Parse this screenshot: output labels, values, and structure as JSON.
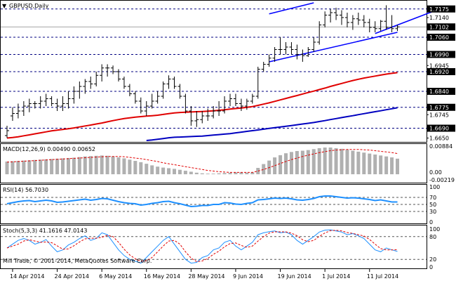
{
  "window": {
    "title": "GBPUSD,Daily"
  },
  "panes": {
    "main": {
      "header": "GBPUSD,Daily",
      "ylim": [
        1.664,
        1.72
      ]
    },
    "macd": {
      "header": "MACD(12,26,9) 0.00490 0.00652",
      "ylim": [
        -0.00219,
        0.00884
      ]
    },
    "rsi": {
      "header": "RSI(14) 56.7030",
      "ylim": [
        0,
        100
      ]
    },
    "stoch": {
      "header": "Stoch(5,3,3) 41.1616 47.0143",
      "ylim": [
        0,
        100
      ]
    }
  },
  "copyright": "Mill Trade, © 2001-2014, MetaQuotes Software Corp.",
  "colors": {
    "background": "#ffffff",
    "bars": "#000000",
    "ma_fast": "#e00000",
    "ma_slow": "#0000c0",
    "channel": "#0000ff",
    "level_line": "#000080",
    "macd_hist": "#b0b0b0",
    "macd_signal": "#e00000",
    "rsi_line": "#1e90ff",
    "stoch_main": "#1e90ff",
    "stoch_signal": "#e00000",
    "price_box": "#000000"
  },
  "chart_data": {
    "type": "ohlc",
    "symbol": "GBPUSD",
    "timeframe": "Daily",
    "title": "GBPUSD,Daily",
    "x": [
      "2014-04-11",
      "2014-04-14",
      "2014-04-15",
      "2014-04-16",
      "2014-04-17",
      "2014-04-18",
      "2014-04-21",
      "2014-04-22",
      "2014-04-23",
      "2014-04-24",
      "2014-04-25",
      "2014-04-28",
      "2014-04-29",
      "2014-04-30",
      "2014-05-01",
      "2014-05-02",
      "2014-05-05",
      "2014-05-06",
      "2014-05-07",
      "2014-05-08",
      "2014-05-09",
      "2014-05-12",
      "2014-05-13",
      "2014-05-14",
      "2014-05-15",
      "2014-05-16",
      "2014-05-19",
      "2014-05-20",
      "2014-05-21",
      "2014-05-22",
      "2014-05-23",
      "2014-05-26",
      "2014-05-27",
      "2014-05-28",
      "2014-05-29",
      "2014-05-30",
      "2014-06-02",
      "2014-06-03",
      "2014-06-04",
      "2014-06-05",
      "2014-06-06",
      "2014-06-09",
      "2014-06-10",
      "2014-06-11",
      "2014-06-12",
      "2014-06-13",
      "2014-06-16",
      "2014-06-17",
      "2014-06-18",
      "2014-06-19",
      "2014-06-20",
      "2014-06-23",
      "2014-06-24",
      "2014-06-25",
      "2014-06-26",
      "2014-06-27",
      "2014-06-30",
      "2014-07-01",
      "2014-07-02",
      "2014-07-03",
      "2014-07-04",
      "2014-07-07",
      "2014-07-08",
      "2014-07-09",
      "2014-07-10",
      "2014-07-11",
      "2014-07-14",
      "2014-07-15",
      "2014-07-16",
      "2014-07-17",
      "2014-07-18"
    ],
    "series": [
      {
        "name": "open",
        "values": [
          1.666,
          1.674,
          1.675,
          1.676,
          1.678,
          1.679,
          1.679,
          1.68,
          1.681,
          1.679,
          1.678,
          1.679,
          1.681,
          1.684,
          1.686,
          1.688,
          1.687,
          1.6905,
          1.6935,
          1.6935,
          1.692,
          1.689,
          1.686,
          1.683,
          1.68,
          1.676,
          1.678,
          1.68,
          1.682,
          1.687,
          1.689,
          1.686,
          1.682,
          1.676,
          1.672,
          1.6725,
          1.674,
          1.674,
          1.676,
          1.676,
          1.68,
          1.681,
          1.679,
          1.678,
          1.68,
          1.682,
          1.693,
          1.695,
          1.6975,
          1.701,
          1.701,
          1.702,
          1.701,
          1.699,
          1.6985,
          1.701,
          1.704,
          1.711,
          1.715,
          1.716,
          1.715,
          1.714,
          1.712,
          1.7135,
          1.713,
          1.712,
          1.71,
          1.7095,
          1.7125,
          1.71,
          1.7095
        ]
      },
      {
        "name": "high",
        "values": [
          1.67,
          1.6775,
          1.679,
          1.68,
          1.681,
          1.68,
          1.682,
          1.683,
          1.682,
          1.681,
          1.682,
          1.684,
          1.686,
          1.688,
          1.689,
          1.69,
          1.692,
          1.695,
          1.695,
          1.6945,
          1.693,
          1.69,
          1.687,
          1.684,
          1.6815,
          1.68,
          1.683,
          1.684,
          1.688,
          1.6905,
          1.69,
          1.687,
          1.683,
          1.678,
          1.676,
          1.676,
          1.677,
          1.678,
          1.68,
          1.682,
          1.683,
          1.683,
          1.681,
          1.681,
          1.683,
          1.694,
          1.696,
          1.699,
          1.702,
          1.706,
          1.704,
          1.704,
          1.703,
          1.701,
          1.702,
          1.706,
          1.7125,
          1.7165,
          1.7175,
          1.718,
          1.717,
          1.716,
          1.715,
          1.716,
          1.715,
          1.7135,
          1.7125,
          1.713,
          1.719,
          1.715,
          1.711
        ]
      },
      {
        "name": "low",
        "values": [
          1.665,
          1.672,
          1.673,
          1.674,
          1.6755,
          1.677,
          1.677,
          1.678,
          1.678,
          1.676,
          1.676,
          1.677,
          1.679,
          1.681,
          1.683,
          1.685,
          1.686,
          1.688,
          1.69,
          1.691,
          1.688,
          1.685,
          1.682,
          1.679,
          1.675,
          1.674,
          1.677,
          1.679,
          1.681,
          1.685,
          1.685,
          1.681,
          1.675,
          1.67,
          1.6695,
          1.671,
          1.672,
          1.673,
          1.674,
          1.675,
          1.678,
          1.678,
          1.676,
          1.6765,
          1.679,
          1.681,
          1.692,
          1.694,
          1.696,
          1.699,
          1.699,
          1.699,
          1.697,
          1.696,
          1.698,
          1.7,
          1.703,
          1.71,
          1.712,
          1.713,
          1.711,
          1.71,
          1.709,
          1.711,
          1.71,
          1.708,
          1.708,
          1.7085,
          1.709,
          1.708,
          1.7085
        ]
      },
      {
        "name": "close",
        "values": [
          1.668,
          1.675,
          1.676,
          1.678,
          1.679,
          1.679,
          1.68,
          1.681,
          1.679,
          1.678,
          1.679,
          1.681,
          1.684,
          1.686,
          1.688,
          1.687,
          1.6905,
          1.6935,
          1.6935,
          1.692,
          1.689,
          1.686,
          1.683,
          1.68,
          1.676,
          1.678,
          1.68,
          1.682,
          1.687,
          1.689,
          1.686,
          1.682,
          1.676,
          1.672,
          1.6725,
          1.674,
          1.674,
          1.676,
          1.676,
          1.68,
          1.681,
          1.679,
          1.678,
          1.68,
          1.682,
          1.693,
          1.695,
          1.6975,
          1.701,
          1.701,
          1.702,
          1.701,
          1.699,
          1.6985,
          1.701,
          1.704,
          1.711,
          1.715,
          1.716,
          1.715,
          1.714,
          1.712,
          1.7135,
          1.713,
          1.712,
          1.71,
          1.7095,
          1.7125,
          1.71,
          1.7095,
          1.7102
        ]
      }
    ],
    "moving_averages": [
      {
        "color": "#e00000",
        "values": [
          1.665,
          1.6652,
          1.6655,
          1.6659,
          1.6663,
          1.6667,
          1.6671,
          1.6675,
          1.6679,
          1.6682,
          1.6685,
          1.6688,
          1.6691,
          1.6695,
          1.6699,
          1.6703,
          1.6707,
          1.6711,
          1.6716,
          1.6721,
          1.6725,
          1.6729,
          1.6732,
          1.6735,
          1.6737,
          1.6739,
          1.6741,
          1.6743,
          1.6746,
          1.6749,
          1.6752,
          1.6754,
          1.6755,
          1.6756,
          1.6757,
          1.6758,
          1.6759,
          1.6761,
          1.6763,
          1.6765,
          1.6768,
          1.677,
          1.6772,
          1.6775,
          1.6778,
          1.6783,
          1.6788,
          1.6793,
          1.6799,
          1.6805,
          1.6811,
          1.6817,
          1.6823,
          1.6829,
          1.6835,
          1.6841,
          1.6847,
          1.6853,
          1.686,
          1.6866,
          1.6872,
          1.6878,
          1.6884,
          1.6889,
          1.6894,
          1.6898,
          1.6902,
          1.6906,
          1.691,
          1.6913,
          1.6916
        ]
      },
      {
        "color": "#0000c0",
        "values": [
          null,
          null,
          null,
          null,
          null,
          null,
          null,
          null,
          null,
          null,
          null,
          null,
          null,
          null,
          null,
          null,
          null,
          null,
          null,
          null,
          null,
          null,
          null,
          null,
          null,
          1.664,
          1.6642,
          1.6645,
          1.6648,
          1.6651,
          1.6653,
          1.6654,
          1.6655,
          1.6656,
          1.6657,
          1.6658,
          1.666,
          1.6662,
          1.6664,
          1.6666,
          1.6668,
          1.6671,
          1.6674,
          1.6677,
          1.668,
          1.6683,
          1.6686,
          1.6689,
          1.6692,
          1.6695,
          1.6698,
          1.6701,
          1.6704,
          1.6707,
          1.671,
          1.6713,
          1.6717,
          1.6721,
          1.6725,
          1.6729,
          1.6733,
          1.6737,
          1.6741,
          1.6745,
          1.6749,
          1.6753,
          1.6757,
          1.6761,
          1.6765,
          1.6769,
          1.6773
        ]
      }
    ],
    "trend_channel": {
      "lower": [
        [
          "2014-06-17",
          1.696
        ],
        [
          "2014-07-18",
          1.708
        ]
      ],
      "upper": [
        [
          "2014-06-17",
          1.7155
        ],
        [
          "2014-06-27",
          1.72
        ]
      ],
      "extended_lower": [
        [
          "2014-07-14",
          1.7075
        ],
        [
          "2014-07-18",
          1.713
        ]
      ]
    },
    "price_levels": [
      1.7175,
      1.706,
      1.699,
      1.692,
      1.684,
      1.6775,
      1.669
    ],
    "current_price": 1.7102,
    "y_ticks": [
      "1.7175",
      "1.7140",
      "1.7102",
      "1.7060",
      "1.6990",
      "1.6945",
      "1.6920",
      "1.6840",
      "1.6775",
      "1.6745",
      "1.6690",
      "1.6650"
    ],
    "x_ticks": [
      {
        "date": "2014-04-14",
        "label": "14 Apr 2014"
      },
      {
        "date": "2014-04-24",
        "label": "24 Apr 2014"
      },
      {
        "date": "2014-05-06",
        "label": "6 May 2014"
      },
      {
        "date": "2014-05-16",
        "label": "16 May 2014"
      },
      {
        "date": "2014-05-28",
        "label": "28 May 2014"
      },
      {
        "date": "2014-06-09",
        "label": "9 Jun 2014"
      },
      {
        "date": "2014-06-19",
        "label": "19 Jun 2014"
      },
      {
        "date": "2014-07-01",
        "label": "1 Jul 2014"
      },
      {
        "date": "2014-07-11",
        "label": "11 Jul 2014"
      }
    ],
    "macd": {
      "y_ticks": [
        "0.00884",
        "0.00",
        "-0.00219"
      ],
      "hist": [
        0.004,
        0.0041,
        0.0042,
        0.0043,
        0.0044,
        0.0045,
        0.0046,
        0.0047,
        0.0048,
        0.0049,
        0.005,
        0.0051,
        0.0052,
        0.0054,
        0.0056,
        0.0057,
        0.0058,
        0.0059,
        0.0058,
        0.0056,
        0.0053,
        0.005,
        0.0046,
        0.0042,
        0.0038,
        0.0033,
        0.0028,
        0.0024,
        0.0021,
        0.0019,
        0.0017,
        0.0014,
        0.0011,
        0.0008,
        0.0005,
        0.0003,
        0.0002,
        0.0002,
        0.0003,
        0.0004,
        0.0005,
        0.0006,
        0.0006,
        0.0005,
        0.0006,
        0.002,
        0.0032,
        0.0043,
        0.0053,
        0.006,
        0.0066,
        0.007,
        0.0073,
        0.0074,
        0.0076,
        0.0079,
        0.0082,
        0.0084,
        0.0084,
        0.0082,
        0.008,
        0.0077,
        0.0074,
        0.0071,
        0.0068,
        0.0065,
        0.0062,
        0.0059,
        0.0056,
        0.0053,
        0.0049
      ],
      "signal": [
        0.0038,
        0.0039,
        0.004,
        0.0041,
        0.0042,
        0.0043,
        0.0044,
        0.0045,
        0.0046,
        0.0047,
        0.0048,
        0.0049,
        0.005,
        0.0051,
        0.0052,
        0.0053,
        0.0054,
        0.0055,
        0.0056,
        0.0056,
        0.0056,
        0.0055,
        0.0053,
        0.0051,
        0.0049,
        0.0046,
        0.0043,
        0.004,
        0.0036,
        0.0033,
        0.003,
        0.0027,
        0.0024,
        0.0021,
        0.0018,
        0.0015,
        0.0012,
        0.001,
        0.0008,
        0.0007,
        0.0006,
        0.0006,
        0.0006,
        0.0006,
        0.0006,
        0.001,
        0.0015,
        0.0021,
        0.0027,
        0.0034,
        0.004,
        0.0046,
        0.0051,
        0.0056,
        0.006,
        0.0064,
        0.0068,
        0.0071,
        0.0074,
        0.0076,
        0.0077,
        0.0078,
        0.0078,
        0.0078,
        0.0077,
        0.0076,
        0.0074,
        0.0072,
        0.007,
        0.0068,
        0.0065
      ]
    },
    "rsi": {
      "levels": [
        30,
        50,
        70
      ],
      "y_ticks": [
        "100",
        "70",
        "50",
        "30",
        "0"
      ],
      "values": [
        52,
        55,
        58,
        60,
        61,
        58,
        60,
        62,
        60,
        56,
        57,
        59,
        61,
        63,
        65,
        62,
        64,
        67,
        66,
        62,
        58,
        55,
        53,
        52,
        48,
        50,
        53,
        55,
        58,
        59,
        55,
        52,
        48,
        44,
        45,
        47,
        47,
        50,
        50,
        55,
        54,
        51,
        50,
        53,
        55,
        63,
        64,
        66,
        68,
        67,
        68,
        66,
        63,
        62,
        64,
        67,
        72,
        74,
        74,
        72,
        70,
        68,
        69,
        68,
        66,
        64,
        61,
        63,
        60,
        57,
        57
      ]
    },
    "stoch": {
      "levels": [
        20,
        80
      ],
      "y_ticks": [
        "100",
        "80",
        "20",
        "0"
      ],
      "k": [
        50,
        60,
        70,
        75,
        70,
        60,
        65,
        72,
        55,
        40,
        45,
        58,
        65,
        75,
        82,
        70,
        75,
        90,
        85,
        65,
        45,
        30,
        20,
        15,
        10,
        25,
        40,
        55,
        70,
        80,
        60,
        40,
        20,
        10,
        12,
        25,
        30,
        45,
        50,
        65,
        70,
        55,
        45,
        55,
        65,
        85,
        90,
        93,
        95,
        90,
        92,
        85,
        70,
        60,
        70,
        80,
        92,
        97,
        98,
        95,
        92,
        85,
        88,
        82,
        75,
        60,
        45,
        40,
        50,
        45,
        41
      ]
    }
  }
}
